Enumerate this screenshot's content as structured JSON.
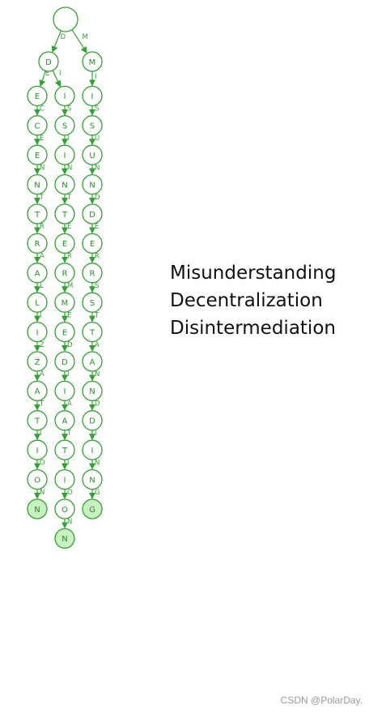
{
  "colors": {
    "stroke": "#33a133",
    "node_fill": "#ffffff",
    "terminal_fill": "#c8f0c0",
    "label": "#2c8a2c",
    "edge_label": "#3a993a",
    "text": "#111111",
    "watermark": "#9a9a9a"
  },
  "words": [
    "Misunderstanding",
    "Decentralization",
    "Disintermediation"
  ],
  "trie": {
    "root_label": "",
    "branches": [
      {
        "first_edge": "D",
        "first_node": "D",
        "columns": [
          {
            "suffix": "ECENTRALIZATION",
            "terminal": true
          },
          {
            "suffix": "ISINTERMEDIATION",
            "terminal": true
          }
        ]
      },
      {
        "first_edge": "M",
        "first_node": "M",
        "columns": [
          {
            "suffix": "ISUNDERSTANDING",
            "terminal": true
          }
        ]
      }
    ]
  },
  "watermark": "CSDN @PolarDay."
}
